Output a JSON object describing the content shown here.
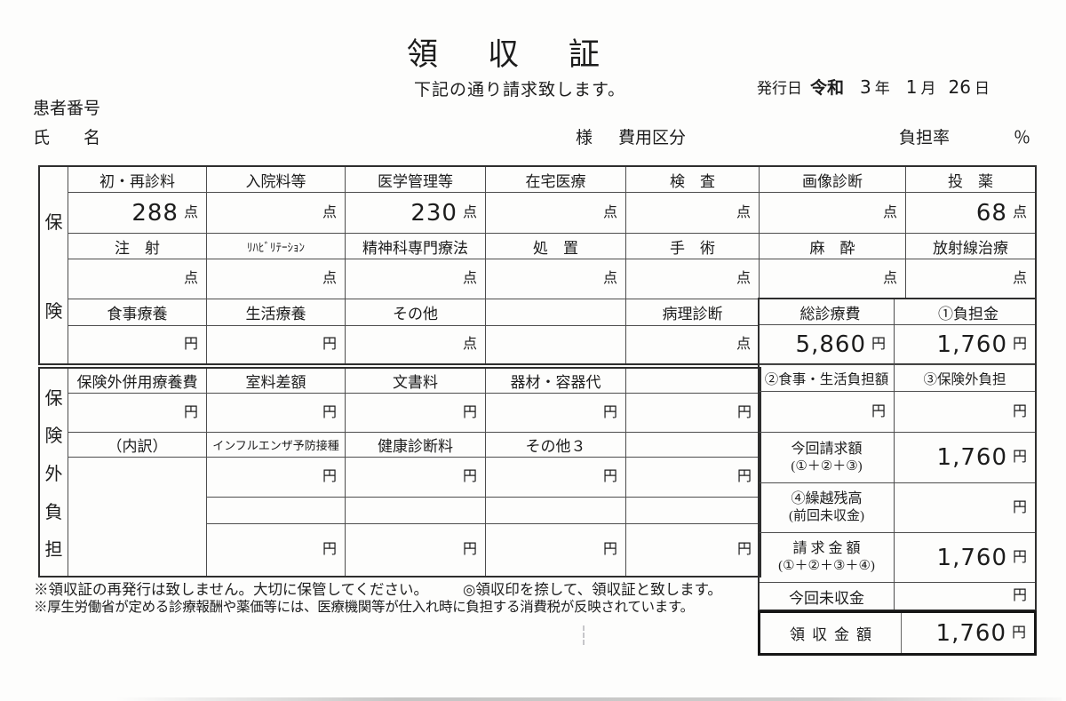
{
  "page": {
    "title": "領収証",
    "subtitle": "下記の通り請求致します。",
    "issue_label": "発行日",
    "issue_era": "令和",
    "issue_year": "3",
    "issue_year_unit": "年",
    "issue_month": "1",
    "issue_month_unit": "月",
    "issue_day": "26",
    "issue_day_unit": "日",
    "patient_number_label": "患者番号",
    "name_label": "氏　　名",
    "honorific": "様",
    "expense_category_label": "費用区分",
    "burden_rate_label": "負担率",
    "percent_sign": "％"
  },
  "insurance": {
    "side": [
      "保",
      "険"
    ],
    "r1h": [
      "初・再診料",
      "入院料等",
      "医学管理等",
      "在宅医療",
      "検　査",
      "画像診断",
      "投　薬"
    ],
    "r1v": [
      {
        "n": "288",
        "u": "点"
      },
      {
        "n": "",
        "u": "点"
      },
      {
        "n": "230",
        "u": "点"
      },
      {
        "n": "",
        "u": "点"
      },
      {
        "n": "",
        "u": "点"
      },
      {
        "n": "",
        "u": "点"
      },
      {
        "n": "68",
        "u": "点"
      }
    ],
    "r2h": [
      "注　射",
      "ﾘﾊﾋﾞﾘﾃｰｼｮﾝ",
      "精神科専門療法",
      "処　置",
      "手　術",
      "麻　酔",
      "放射線治療"
    ],
    "r2v": [
      {
        "n": "",
        "u": "点"
      },
      {
        "n": "",
        "u": "点"
      },
      {
        "n": "",
        "u": "点"
      },
      {
        "n": "",
        "u": "点"
      },
      {
        "n": "",
        "u": "点"
      },
      {
        "n": "",
        "u": "点"
      },
      {
        "n": "",
        "u": "点"
      }
    ],
    "r3h": [
      "食事療養",
      "生活療養",
      "その他",
      "",
      "病理診断"
    ],
    "r3v": [
      {
        "n": "",
        "u": "円"
      },
      {
        "n": "",
        "u": "円"
      },
      {
        "n": "",
        "u": "点"
      },
      {
        "n": "",
        "u": ""
      },
      {
        "n": "",
        "u": "点"
      }
    ]
  },
  "outside": {
    "side": [
      "保",
      "険",
      "外",
      "負",
      "担"
    ],
    "r1h": [
      "保険外併用療養費",
      "室料差額",
      "文書料",
      "器材・容器代",
      ""
    ],
    "r1v": [
      "円",
      "円",
      "円",
      "円",
      "円"
    ],
    "r2h": [
      "（内訳）",
      "インフルエンザ予防接種",
      "健康診断料",
      "その他３",
      ""
    ],
    "r2v": [
      "円",
      "円",
      "円",
      "円"
    ],
    "r3v": [
      "円",
      "円",
      "円",
      "円"
    ]
  },
  "summary": {
    "total_label": "総診療費",
    "total_value": "5,860",
    "burden_label": "①負担金",
    "burden_value": "1,760",
    "meal_label": "②食事・生活負担額",
    "meal_value": "",
    "outside_label": "③保険外負担",
    "outside_value": "",
    "claim_label1": "今回請求額",
    "claim_label2": "(①＋②＋③)",
    "claim_value": "1,760",
    "carry_label1": "④繰越残高",
    "carry_label2": "(前回未収金)",
    "carry_value": "",
    "billed_label1": "請 求 金 額",
    "billed_label2": "(①＋②＋③＋④)",
    "billed_value": "1,760",
    "unpaid_label": "今回未収金",
    "unpaid_value": "",
    "received_label": "領収金額",
    "received_value": "1,760",
    "yen": "円"
  },
  "footnotes": {
    "line1a": "※領収証の再発行は致しません。大切に保管してください。",
    "line1b": "◎領収印を捺して、領収証と致します。",
    "line2": "※厚生労働省が定める診療報酬や薬価等には、医療機関等が仕入れ時に負担する消費税が反映されています。"
  }
}
